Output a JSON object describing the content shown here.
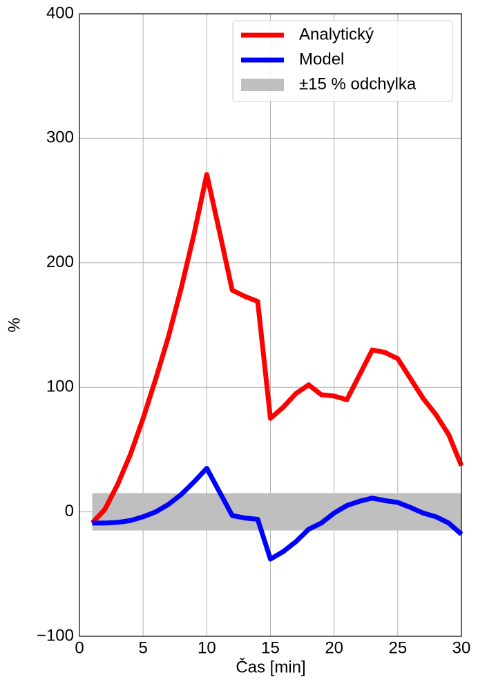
{
  "chart_data": {
    "type": "line",
    "x": [
      1,
      2,
      3,
      4,
      5,
      6,
      7,
      8,
      9,
      10,
      11,
      12,
      13,
      14,
      15,
      16,
      17,
      18,
      19,
      20,
      21,
      22,
      23,
      24,
      25,
      26,
      27,
      28,
      29,
      30
    ],
    "series": [
      {
        "name": "Analytický",
        "color": "#ff0000",
        "values": [
          -9,
          2,
          22,
          46,
          75,
          107,
          141,
          180,
          223,
          271,
          225,
          178,
          173,
          169,
          75,
          84,
          95,
          102,
          94,
          93,
          90,
          110,
          130,
          128,
          123,
          107,
          91,
          78,
          62,
          37
        ]
      },
      {
        "name": "Model",
        "color": "#0000ff",
        "values": [
          -9,
          -9,
          -8.5,
          -7,
          -4,
          0,
          6,
          14,
          24,
          35,
          16,
          -3,
          -5,
          -6,
          -38,
          -32,
          -24,
          -14,
          -9,
          -1,
          5,
          8.5,
          11,
          9,
          7.5,
          3.5,
          -1,
          -4,
          -9,
          -18
        ]
      }
    ],
    "band": {
      "name": "±15 % odchylka",
      "color": "#bfbfbf",
      "x": [
        1,
        30
      ],
      "lower": -15,
      "upper": 15
    },
    "xlabel": "Čas [min]",
    "ylabel": "%",
    "xlim": [
      0,
      30
    ],
    "xticks": [
      0,
      5,
      10,
      15,
      20,
      25,
      30
    ],
    "ylim": [
      -100,
      400
    ],
    "yticks": [
      {
        "value": -100,
        "label": "−100"
      },
      0,
      100,
      200,
      300,
      400
    ],
    "grid": true,
    "legend": "upper right"
  }
}
